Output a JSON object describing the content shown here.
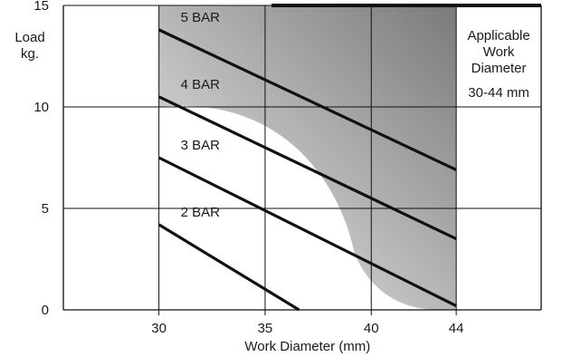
{
  "chart_data": {
    "type": "line",
    "title": "",
    "xlabel": "Work Diameter (mm)",
    "ylabel_lines": [
      "Load",
      "kg."
    ],
    "xlim": [
      25.5,
      48
    ],
    "ylim": [
      0,
      15
    ],
    "x_ticks": [
      30,
      35,
      40,
      44
    ],
    "y_ticks": [
      0,
      5,
      10,
      15
    ],
    "grid": true,
    "applicable_range": [
      30,
      44
    ],
    "note_lines": [
      "Applicable",
      "Work",
      "Diameter",
      "30-44 mm"
    ],
    "series": [
      {
        "name": "5 BAR",
        "x": [
          30,
          44
        ],
        "y": [
          13.8,
          6.9
        ]
      },
      {
        "name": "4 BAR",
        "x": [
          30,
          44
        ],
        "y": [
          10.5,
          3.5
        ]
      },
      {
        "name": "3 BAR",
        "x": [
          30,
          44
        ],
        "y": [
          7.5,
          0.2
        ]
      },
      {
        "name": "2 BAR",
        "x": [
          30,
          36.6
        ],
        "y": [
          4.2,
          0
        ]
      }
    ],
    "colors": {
      "line": "#111111",
      "grid": "#111111",
      "shade_dark": "#7a7a7a",
      "shade_light": "#f2f2f2"
    }
  }
}
